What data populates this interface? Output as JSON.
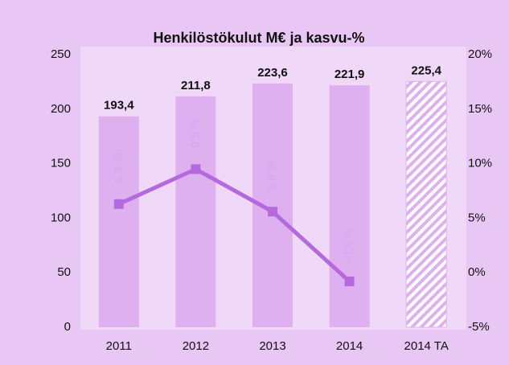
{
  "chart_data": {
    "type": "bar",
    "title": "Henkilöstökulut M€ ja kasvu-%",
    "categories": [
      "2011",
      "2012",
      "2013",
      "2014",
      "2014 TA"
    ],
    "series": [
      {
        "name": "Henkilöstökulut M€",
        "type": "bar",
        "color": "#dfb0f0",
        "hatch": [
          false,
          false,
          false,
          false,
          true
        ],
        "values": [
          193.4,
          211.8,
          223.6,
          221.9,
          225.4
        ],
        "value_labels": [
          "193,4",
          "211,8",
          "223,6",
          "221,9",
          "225,4"
        ]
      },
      {
        "name": "kasvu-%",
        "type": "line",
        "axis": "y2",
        "color": "#b46ade",
        "label_color": "#d9a3ee",
        "values": [
          6.3,
          9.5,
          5.6,
          -0.8,
          null
        ],
        "value_labels": [
          "6,3 %",
          "9,5 %",
          "5,6 %",
          "-0,8 %",
          null
        ]
      }
    ],
    "ylim": [
      0,
      250
    ],
    "yticks": [
      0,
      50,
      100,
      150,
      200,
      250
    ],
    "y2lim": [
      -5,
      20
    ],
    "y2ticks": [
      {
        "value": -5,
        "label": "-5%"
      },
      {
        "value": 0,
        "label": "0%"
      },
      {
        "value": 5,
        "label": "5%"
      },
      {
        "value": 10,
        "label": "10%"
      },
      {
        "value": 15,
        "label": "15%"
      },
      {
        "value": 20,
        "label": "20%"
      }
    ]
  }
}
